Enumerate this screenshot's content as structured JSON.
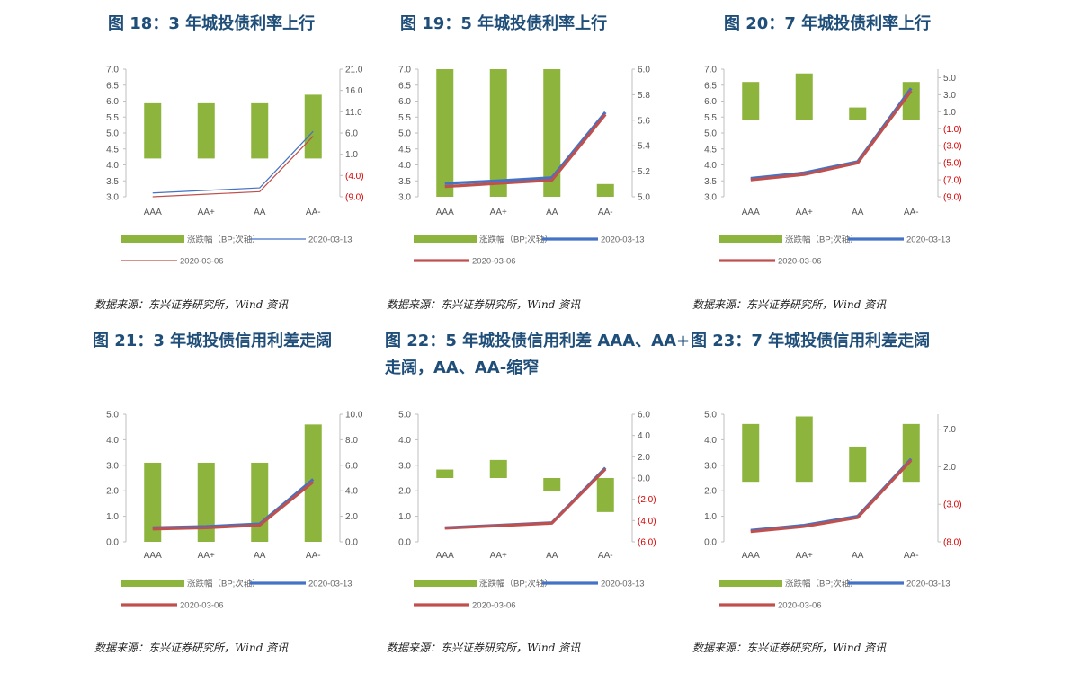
{
  "source_text": "数据来源：东兴证券研究所，Wind 资讯",
  "legend_labels": {
    "bar": "涨跌幅（BP;次轴）",
    "series1": "2020-03-13",
    "series2": "2020-03-06"
  },
  "colors": {
    "bar": "#8db43c",
    "series1": "#4472c4",
    "series2": "#c0504d"
  },
  "chart_data": [
    {
      "title": "图 18：3 年城投债利率上行",
      "type": "bar+line",
      "categories": [
        "AAA",
        "AA+",
        "AA",
        "AA-"
      ],
      "ylim": [
        3.0,
        7.0
      ],
      "yticks": [
        3.0,
        3.5,
        4.0,
        4.5,
        5.0,
        5.5,
        6.0,
        6.5,
        7.0
      ],
      "y2lim": [
        -9,
        21
      ],
      "y2ticks": [
        21,
        16,
        11,
        6,
        1,
        -4,
        -9
      ],
      "y2tick_labels": [
        "21.0",
        "16.0",
        "11.0",
        "6.0",
        "1.0",
        "(4.0)",
        "(9.0)"
      ],
      "bars": [
        13,
        13,
        13,
        15
      ],
      "series": [
        {
          "name": "2020-03-13",
          "values": [
            3.12,
            3.2,
            3.28,
            5.05
          ],
          "thick": false
        },
        {
          "name": "2020-03-06",
          "values": [
            3.0,
            3.08,
            3.16,
            4.9
          ],
          "thick": false
        }
      ],
      "ydecimals": 1
    },
    {
      "title": "图 19：5 年城投债利率上行",
      "type": "bar+line",
      "categories": [
        "AAA",
        "AA+",
        "AA",
        "AA-"
      ],
      "ylim": [
        3.0,
        7.0
      ],
      "yticks": [
        3.0,
        3.5,
        4.0,
        4.5,
        5.0,
        5.5,
        6.0,
        6.5,
        7.0
      ],
      "y2lim": [
        5.0,
        6.0
      ],
      "y2ticks": [
        6.0,
        5.8,
        5.6,
        5.4,
        5.2,
        5.0
      ],
      "y2tick_labels": [
        "6.0",
        "5.8",
        "5.6",
        "5.4",
        "5.2",
        "5.0"
      ],
      "bars": [
        6.0,
        6.0,
        6.0,
        5.1
      ],
      "series": [
        {
          "name": "2020-03-13",
          "values": [
            3.42,
            3.5,
            3.6,
            5.65
          ],
          "thick": true
        },
        {
          "name": "2020-03-06",
          "values": [
            3.32,
            3.42,
            3.52,
            5.58
          ],
          "thick": true
        }
      ],
      "ydecimals": 1
    },
    {
      "title": "图 20：7 年城投债利率上行",
      "type": "bar+line",
      "categories": [
        "AAA",
        "AA+",
        "AA",
        "AA-"
      ],
      "ylim": [
        3.0,
        7.0
      ],
      "yticks": [
        3.0,
        3.5,
        4.0,
        4.5,
        5.0,
        5.5,
        6.0,
        6.5,
        7.0
      ],
      "y2lim": [
        -9,
        6
      ],
      "y2ticks": [
        5,
        3,
        1,
        -1,
        -3,
        -5,
        -7,
        -9
      ],
      "y2tick_labels": [
        "5.0",
        "3.0",
        "1.0",
        "(1.0)",
        "(3.0)",
        "(5.0)",
        "(7.0)",
        "(9.0)"
      ],
      "bars": [
        4.5,
        5.5,
        1.5,
        4.5
      ],
      "series": [
        {
          "name": "2020-03-13",
          "values": [
            3.58,
            3.75,
            4.1,
            6.4
          ],
          "thick": true
        },
        {
          "name": "2020-03-06",
          "values": [
            3.53,
            3.7,
            4.06,
            6.32
          ],
          "thick": true
        }
      ],
      "ydecimals": 1
    },
    {
      "title": "图 21：3 年城投债信用利差走阔",
      "type": "bar+line",
      "categories": [
        "AAA",
        "AA+",
        "AA",
        "AA-"
      ],
      "ylim": [
        0.0,
        5.0
      ],
      "yticks": [
        0.0,
        1.0,
        2.0,
        3.0,
        4.0,
        5.0
      ],
      "y2lim": [
        0,
        10
      ],
      "y2ticks": [
        10,
        8,
        6,
        4,
        2,
        0
      ],
      "y2tick_labels": [
        "10.0",
        "8.0",
        "6.0",
        "4.0",
        "2.0",
        "0.0"
      ],
      "bars": [
        6.2,
        6.2,
        6.2,
        9.2
      ],
      "series": [
        {
          "name": "2020-03-13",
          "values": [
            0.55,
            0.6,
            0.7,
            2.45
          ],
          "thick": true
        },
        {
          "name": "2020-03-06",
          "values": [
            0.5,
            0.55,
            0.65,
            2.35
          ],
          "thick": true
        }
      ],
      "ydecimals": 1
    },
    {
      "title": "图 22：5 年城投债信用利差 AAA、AA+\n走阔，AA、AA-缩窄",
      "type": "bar+line",
      "categories": [
        "AAA",
        "AA+",
        "AA",
        "AA-"
      ],
      "ylim": [
        0.0,
        5.0
      ],
      "yticks": [
        0.0,
        1.0,
        2.0,
        3.0,
        4.0,
        5.0
      ],
      "y2lim": [
        -6,
        6
      ],
      "y2ticks": [
        6,
        4,
        2,
        0,
        -2,
        -4,
        -6
      ],
      "y2tick_labels": [
        "6.0",
        "4.0",
        "2.0",
        "0.0",
        "(2.0)",
        "(4.0)",
        "(6.0)"
      ],
      "bars": [
        0.8,
        1.7,
        -1.2,
        -3.2
      ],
      "series": [
        {
          "name": "2020-03-13",
          "values": [
            0.55,
            0.65,
            0.75,
            2.9
          ],
          "thick": true
        },
        {
          "name": "2020-03-06",
          "values": [
            0.53,
            0.63,
            0.73,
            2.85
          ],
          "thick": true
        }
      ],
      "ydecimals": 1
    },
    {
      "title": "图 23：7 年城投债信用利差走阔",
      "type": "bar+line",
      "categories": [
        "AAA",
        "AA+",
        "AA",
        "AA-"
      ],
      "ylim": [
        0.0,
        5.0
      ],
      "yticks": [
        0.0,
        1.0,
        2.0,
        3.0,
        4.0,
        5.0
      ],
      "y2lim": [
        -8,
        9
      ],
      "y2ticks": [
        7,
        2,
        -3,
        -8
      ],
      "y2tick_labels": [
        "7.0",
        "2.0",
        "(3.0)",
        "(8.0)"
      ],
      "bars": [
        7.7,
        8.7,
        4.7,
        7.7
      ],
      "series": [
        {
          "name": "2020-03-13",
          "values": [
            0.45,
            0.65,
            1.0,
            3.25
          ],
          "thick": true
        },
        {
          "name": "2020-03-06",
          "values": [
            0.4,
            0.6,
            0.95,
            3.2
          ],
          "thick": true
        }
      ],
      "ydecimals": 1
    }
  ]
}
